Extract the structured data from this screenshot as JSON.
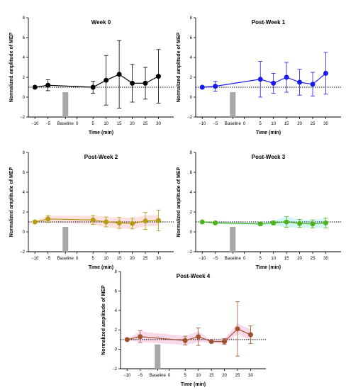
{
  "chart_data": [
    {
      "type": "line",
      "title": "Week 0",
      "xlabel": "Time (min)",
      "ylabel": "Normalized amplitude of  MEP",
      "color": "#000000",
      "band_color": "",
      "x_ticks": [
        "−10",
        "−5",
        "Baseline",
        "0",
        "5",
        "10",
        "15",
        "20",
        "25",
        "30"
      ],
      "y_ticks": [
        "−2",
        "0",
        "2",
        "4",
        "6",
        "8"
      ],
      "ylim": [
        -2,
        8
      ],
      "reference_line": 1,
      "baseline_bar": 0.5,
      "x": [
        "−10",
        "−5",
        "5",
        "10",
        "15",
        "20",
        "25",
        "30"
      ],
      "values": [
        1.0,
        1.2,
        1.0,
        1.7,
        2.3,
        1.4,
        1.4,
        2.1
      ],
      "error": [
        0.1,
        0.55,
        0.6,
        2.5,
        3.4,
        1.9,
        1.6,
        2.7
      ]
    },
    {
      "type": "line",
      "title": "Post-Week 1",
      "xlabel": "Time (min)",
      "ylabel": "Normalized amplitude of  MEP",
      "color": "#1a1aee",
      "band_color": "",
      "x_ticks": [
        "−10",
        "−5",
        "Baseline",
        "0",
        "5",
        "10",
        "15",
        "20",
        "25",
        "30"
      ],
      "y_ticks": [
        "−2",
        "0",
        "2",
        "4",
        "6",
        "8"
      ],
      "ylim": [
        -2,
        8
      ],
      "reference_line": 1,
      "baseline_bar": 0.5,
      "x": [
        "−10",
        "−5",
        "5",
        "10",
        "15",
        "20",
        "25",
        "30"
      ],
      "values": [
        1.0,
        1.1,
        1.8,
        1.4,
        2.0,
        1.5,
        1.3,
        2.4
      ],
      "error": [
        0.1,
        0.5,
        1.8,
        1.0,
        1.5,
        1.3,
        1.2,
        2.1
      ]
    },
    {
      "type": "line",
      "title": "Post-Week 2",
      "xlabel": "Time (min)",
      "ylabel": "Normalized amplitude of  MEP",
      "color": "#b89a10",
      "band_color": "#f7c9c9",
      "x_ticks": [
        "−10",
        "−5",
        "Baseline",
        "0",
        "5",
        "10",
        "15",
        "20",
        "25",
        "30"
      ],
      "y_ticks": [
        "−2",
        "0",
        "2",
        "4",
        "6",
        "8"
      ],
      "ylim": [
        -2,
        8
      ],
      "reference_line": 1,
      "baseline_bar": 0.5,
      "x": [
        "−10",
        "−5",
        "5",
        "10",
        "15",
        "20",
        "25",
        "30"
      ],
      "values": [
        1.0,
        1.3,
        1.2,
        1.0,
        0.9,
        0.85,
        1.1,
        1.15
      ],
      "error": [
        0.1,
        0.35,
        0.45,
        0.5,
        0.55,
        0.55,
        0.85,
        1.05
      ]
    },
    {
      "type": "line",
      "title": "Post-Week 3",
      "xlabel": "Time (min)",
      "ylabel": "Normalized amplitude of  MEP",
      "color": "#4db31a",
      "band_color": "#aef0ee",
      "x_ticks": [
        "−10",
        "−5",
        "Baseline",
        "0",
        "5",
        "10",
        "15",
        "20",
        "25",
        "30"
      ],
      "y_ticks": [
        "−2",
        "0",
        "2",
        "4",
        "6",
        "8"
      ],
      "ylim": [
        -2,
        8
      ],
      "reference_line": 1,
      "baseline_bar": 0.5,
      "x": [
        "−10",
        "−5",
        "5",
        "10",
        "15",
        "20",
        "25",
        "30"
      ],
      "values": [
        1.0,
        0.9,
        0.8,
        0.9,
        1.0,
        0.85,
        0.8,
        0.9
      ],
      "error": [
        0.05,
        0.1,
        0.15,
        0.2,
        0.55,
        0.4,
        0.4,
        0.5
      ]
    },
    {
      "type": "line",
      "title": "Post-Week 4",
      "xlabel": "Time (min)",
      "ylabel": "Normalized amplitude of  MEP",
      "color": "#a0522d",
      "band_color": "#f4b8d8",
      "x_ticks": [
        "−10",
        "−5",
        "Baseline",
        "0",
        "5",
        "10",
        "15",
        "20",
        "25",
        "30"
      ],
      "y_ticks": [
        "−2",
        "0",
        "2",
        "4",
        "6",
        "8"
      ],
      "ylim": [
        -2,
        8
      ],
      "reference_line": 1,
      "baseline_bar": 0.5,
      "x": [
        "−10",
        "−5",
        "5",
        "10",
        "15",
        "20",
        "25",
        "30"
      ],
      "values": [
        1.0,
        1.3,
        0.9,
        1.3,
        0.8,
        0.8,
        2.1,
        1.5
      ],
      "error": [
        0.05,
        0.6,
        0.45,
        0.9,
        0.1,
        0.3,
        2.8,
        0.9
      ]
    }
  ]
}
